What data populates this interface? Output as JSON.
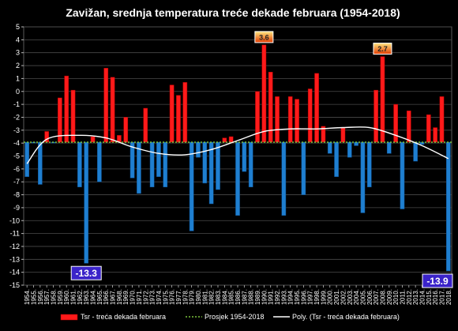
{
  "chart_data": {
    "type": "bar",
    "title": "Zavižan, srednja temperatura treće dekade februara (1954-2018)",
    "ylim": [
      -15,
      5
    ],
    "yticks": [
      5,
      4,
      3,
      2,
      1,
      0,
      -1,
      -2,
      -3,
      -4,
      -5,
      -6,
      -7,
      -8,
      -9,
      -10,
      -11,
      -12,
      -13,
      -14,
      -15
    ],
    "baseline": -3.93,
    "grid": true,
    "legend_position": "bottom",
    "categories": [
      "1954.",
      "1955.",
      "1956.",
      "1957.",
      "1958.",
      "1959.",
      "1960.",
      "1961.",
      "1962.",
      "1963.",
      "1964.",
      "1965.",
      "1966.",
      "1967.",
      "1968.",
      "1969.",
      "1970.",
      "1971.",
      "1972.",
      "1973.",
      "1974.",
      "1975.",
      "1976.",
      "1977.",
      "1978.",
      "1979.",
      "1980.",
      "1981.",
      "1982.",
      "1983.",
      "1984.",
      "1985.",
      "1986.",
      "1987.",
      "1988.",
      "1989.",
      "1990.",
      "1991.",
      "1992.",
      "1993.",
      "1994.",
      "1995.",
      "1996.",
      "1997.",
      "1998.",
      "1999.",
      "2000.",
      "2001.",
      "2002.",
      "2003.",
      "2004.",
      "2005.",
      "2006.",
      "2007.",
      "2008.",
      "2009.",
      "2010.",
      "2011.",
      "2012.",
      "2013.",
      "2014.",
      "2015.",
      "2016.",
      "2017.",
      "2018."
    ],
    "values": [
      -6.6,
      -4.0,
      -7.2,
      -3.1,
      -4.0,
      -0.5,
      1.2,
      0.1,
      -7.4,
      -13.3,
      -3.5,
      -7.0,
      1.8,
      1.1,
      -3.4,
      -2.0,
      -6.7,
      -7.9,
      -1.3,
      -7.4,
      -6.6,
      -7.4,
      0.5,
      -0.3,
      0.7,
      -10.8,
      -5.1,
      -7.1,
      -8.7,
      -7.6,
      -3.6,
      -3.5,
      -9.6,
      -6.2,
      -7.4,
      0.0,
      3.6,
      1.5,
      -0.4,
      -9.6,
      -0.4,
      -0.6,
      -8.0,
      0.2,
      1.4,
      -2.7,
      -4.8,
      -6.6,
      -2.8,
      -5.1,
      -4.2,
      -9.4,
      -7.4,
      0.1,
      2.7,
      -4.8,
      -1.0,
      -9.1,
      -1.5,
      -5.4,
      -4.1,
      -1.8,
      -2.8,
      -0.4,
      -13.9
    ],
    "trend": [
      [
        1954,
        -5.6
      ],
      [
        1957,
        -3.7
      ],
      [
        1962,
        -3.4
      ],
      [
        1966,
        -3.6
      ],
      [
        1970,
        -4.3
      ],
      [
        1974,
        -4.8
      ],
      [
        1978,
        -4.9
      ],
      [
        1982,
        -4.5
      ],
      [
        1986,
        -3.8
      ],
      [
        1990,
        -3.1
      ],
      [
        1994,
        -2.9
      ],
      [
        1998,
        -2.9
      ],
      [
        2002,
        -2.8
      ],
      [
        2006,
        -2.8
      ],
      [
        2010,
        -3.4
      ],
      [
        2014,
        -4.2
      ],
      [
        2018,
        -5.2
      ]
    ],
    "annotations": [
      {
        "category": "1990.",
        "label": "3.6"
      },
      {
        "category": "2008.",
        "label": "2.7"
      },
      {
        "category": "1963.",
        "label": "-13.3"
      },
      {
        "category": "2018.",
        "label": "-13.9"
      }
    ],
    "series": [
      {
        "name": "Tsr - treća dekada februara",
        "color": "#ff1a1a",
        "color_below": "#1f7fd0"
      },
      {
        "name": "Prosjek 1954-2018",
        "color": "#7ac23a"
      },
      {
        "name": "Poly. (Tsr - treća dekada februara)",
        "color": "#ffffff"
      }
    ]
  }
}
